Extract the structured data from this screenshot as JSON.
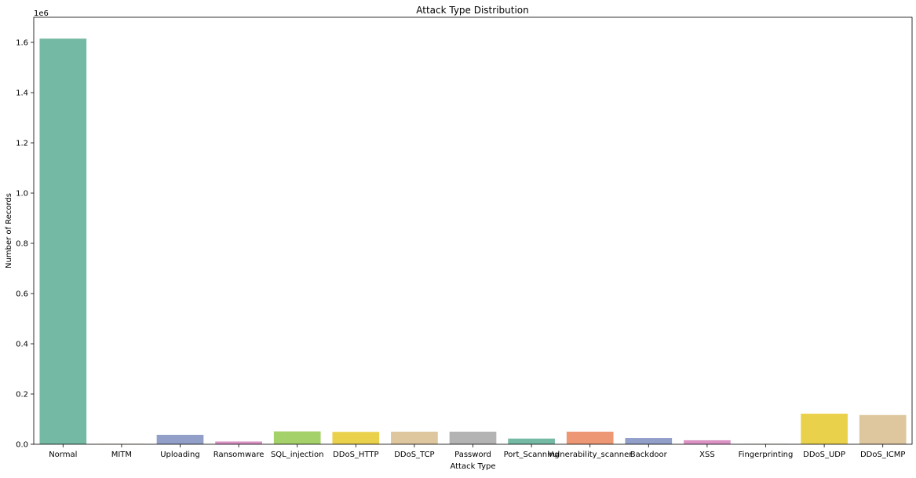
{
  "chart_data": {
    "type": "bar",
    "title": "Attack Type Distribution",
    "xlabel": "Attack Type",
    "ylabel": "Number of Records",
    "y_offset_label": "1e6",
    "ylim": [
      0,
      1700000
    ],
    "y_ticks": [
      0,
      200000,
      400000,
      600000,
      800000,
      1000000,
      1200000,
      1400000,
      1600000
    ],
    "y_tick_labels": [
      "0.0",
      "0.2",
      "0.4",
      "0.6",
      "0.8",
      "1.0",
      "1.2",
      "1.4",
      "1.6"
    ],
    "grid": false,
    "categories": [
      "Normal",
      "MITM",
      "Uploading",
      "Ransomware",
      "SQL_injection",
      "DDoS_HTTP",
      "DDoS_TCP",
      "Password",
      "Port_Scanning",
      "Vulnerability_scanner",
      "Backdoor",
      "XSS",
      "Fingerprinting",
      "DDoS_UDP",
      "DDoS_ICMP"
    ],
    "values": [
      1615000,
      1200,
      37600,
      11000,
      51200,
      49200,
      50100,
      50100,
      22600,
      50100,
      24900,
      15900,
      1000,
      121600,
      116400
    ],
    "colors": [
      "#74b9a3",
      "#ed9774",
      "#929fc9",
      "#db92c4",
      "#a5d16a",
      "#ead14b",
      "#dec69f",
      "#b3b3b3",
      "#74b9a3",
      "#ed9774",
      "#929fc9",
      "#db92c4",
      "#a5d16a",
      "#ead14b",
      "#dec69f"
    ]
  }
}
